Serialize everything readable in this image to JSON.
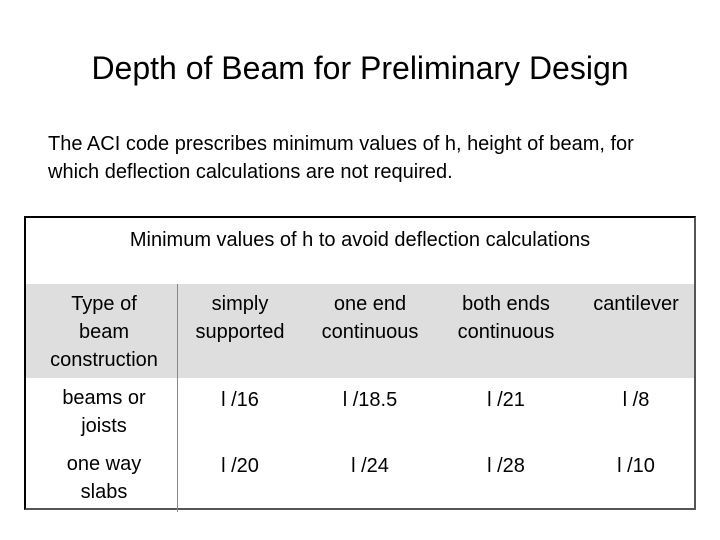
{
  "title": "Depth of Beam for Preliminary Design",
  "intro": "The ACI code prescribes minimum values of h, height of beam, for which deflection calculations are not required.",
  "table": {
    "caption": "Minimum values of h to avoid deflection calculations",
    "headers": {
      "type": [
        "Type of",
        "beam",
        "construction"
      ],
      "simply": [
        "simply",
        "supported"
      ],
      "one_end": [
        "one end",
        "continuous"
      ],
      "both_ends": [
        "both ends",
        "continuous"
      ],
      "cantilever": [
        "cantilever"
      ]
    },
    "rows": [
      {
        "label": [
          "beams or",
          "joists"
        ],
        "values": [
          "l /16",
          "l /18.5",
          "l /21",
          "l /8"
        ]
      },
      {
        "label": [
          "one way",
          "slabs"
        ],
        "values": [
          "l /20",
          "l /24",
          "l /28",
          "l /10"
        ]
      }
    ]
  }
}
